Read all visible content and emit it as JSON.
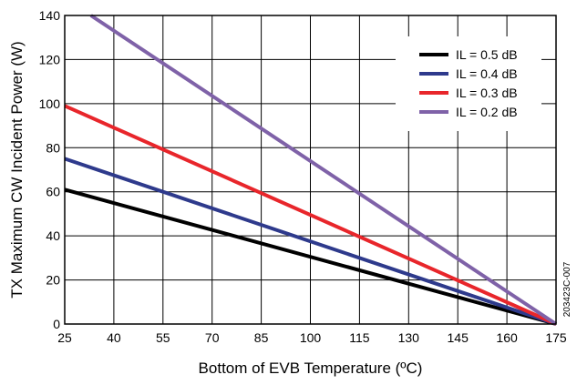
{
  "chart_data": {
    "type": "line",
    "title": "",
    "xlabel": "Bottom of EVB Temperature (ºC)",
    "ylabel": "TX Maximum CW Incident Power (W)",
    "xlim": [
      25,
      175
    ],
    "ylim": [
      0,
      140
    ],
    "xticks": [
      25,
      40,
      55,
      70,
      85,
      100,
      115,
      130,
      145,
      160,
      175
    ],
    "yticks": [
      0,
      20,
      40,
      60,
      80,
      100,
      120,
      140
    ],
    "grid": true,
    "legend_position": "top-right",
    "series": [
      {
        "name": "IL = 0.5 dB",
        "color": "#000000",
        "x": [
          25,
          175
        ],
        "y": [
          61,
          0
        ]
      },
      {
        "name": "IL = 0.4 dB",
        "color": "#2e3a8c",
        "x": [
          25,
          175
        ],
        "y": [
          75,
          0
        ]
      },
      {
        "name": "IL = 0.3 dB",
        "color": "#e8262b",
        "x": [
          25,
          175
        ],
        "y": [
          99,
          0
        ]
      },
      {
        "name": "IL = 0.2 dB",
        "color": "#7f62a8",
        "x": [
          33,
          175
        ],
        "y": [
          140,
          0
        ]
      }
    ]
  },
  "figure_code": "203423C-007"
}
